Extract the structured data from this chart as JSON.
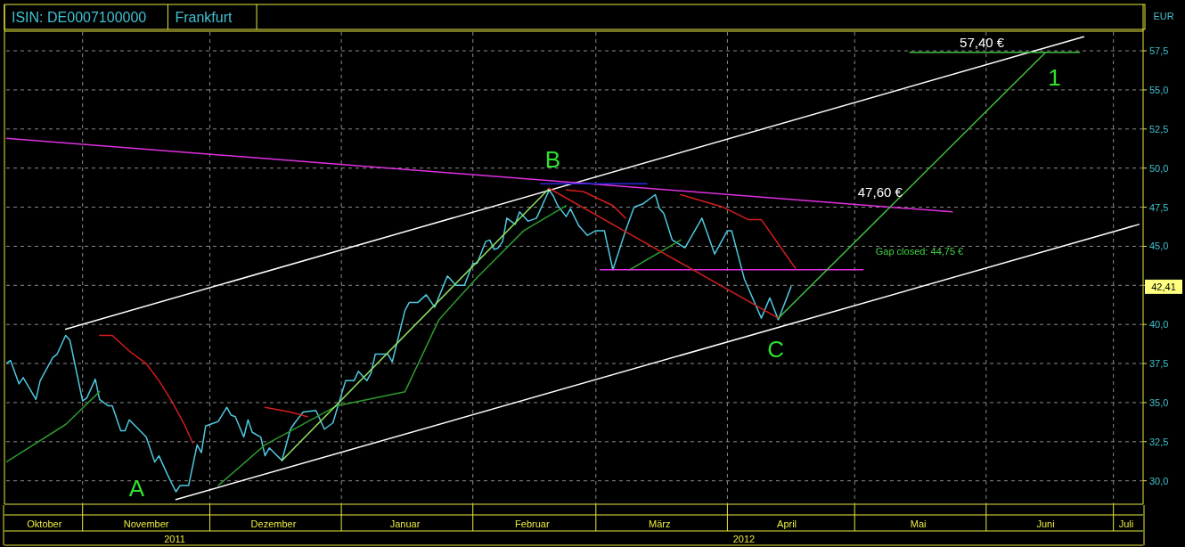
{
  "chart_data": {
    "type": "line",
    "title": "ISIN: DE0007100000",
    "subtitle": "Frankfurt",
    "ylabel": "EUR",
    "xlim": [
      "2011-10-14",
      "2012-07-08"
    ],
    "ylim": [
      28.5,
      58.7
    ],
    "yticks": [
      {
        "value": 30,
        "label": "30,0"
      },
      {
        "value": 32.5,
        "label": "32,5"
      },
      {
        "value": 35,
        "label": "35,0"
      },
      {
        "value": 37.5,
        "label": "37,5"
      },
      {
        "value": 40,
        "label": "40,0"
      },
      {
        "value": 42.5,
        "label": null
      },
      {
        "value": 45,
        "label": "45,0"
      },
      {
        "value": 47.5,
        "label": "47,5"
      },
      {
        "value": 50,
        "label": "50,0"
      },
      {
        "value": 52.5,
        "label": "52,5"
      },
      {
        "value": 55,
        "label": "55,0"
      },
      {
        "value": 57.5,
        "label": "57,5"
      }
    ],
    "xticks": [
      {
        "value": "2011-10-23",
        "label": "Oktober"
      },
      {
        "value": "2011-11-01",
        "label": null
      },
      {
        "value": "2011-11-16",
        "label": "November"
      },
      {
        "value": "2011-12-01",
        "label": null
      },
      {
        "value": "2011-12-16",
        "label": "Dezember"
      },
      {
        "value": "2012-01-01",
        "label": null
      },
      {
        "value": "2012-01-16",
        "label": "Januar"
      },
      {
        "value": "2012-02-01",
        "label": null
      },
      {
        "value": "2012-02-15",
        "label": "Februar"
      },
      {
        "value": "2012-03-01",
        "label": null
      },
      {
        "value": "2012-03-16",
        "label": "März"
      },
      {
        "value": "2012-04-01",
        "label": null
      },
      {
        "value": "2012-04-15",
        "label": "April"
      },
      {
        "value": "2012-05-01",
        "label": null
      },
      {
        "value": "2012-05-16",
        "label": "Mai"
      },
      {
        "value": "2012-06-01",
        "label": null
      },
      {
        "value": "2012-06-15",
        "label": "Juni"
      },
      {
        "value": "2012-07-01",
        "label": null
      },
      {
        "value": "2012-07-04",
        "label": "Juli"
      }
    ],
    "grid": true,
    "marker": "none",
    "series": [
      {
        "color": "#4fc8e0",
        "x": [
          "2011-10-14",
          "2011-10-15",
          "2011-10-17",
          "2011-10-18",
          "2011-10-21",
          "2011-10-22",
          "2011-10-25",
          "2011-10-26",
          "2011-10-28",
          "2011-10-29",
          "2011-11-01",
          "2011-11-02",
          "2011-11-04",
          "2011-11-05",
          "2011-11-07",
          "2011-11-08",
          "2011-11-10",
          "2011-11-11",
          "2011-11-12",
          "2011-11-16",
          "2011-11-18",
          "2011-11-19",
          "2011-11-21",
          "2011-11-23",
          "2011-11-24",
          "2011-11-26",
          "2011-11-28",
          "2011-11-29",
          "2011-11-30",
          "2011-12-01",
          "2011-12-03",
          "2011-12-05",
          "2011-12-06",
          "2011-12-07",
          "2011-12-09",
          "2011-12-10",
          "2011-12-11",
          "2011-12-13",
          "2011-12-14",
          "2011-12-15",
          "2011-12-18",
          "2011-12-20",
          "2011-12-21",
          "2011-12-23",
          "2011-12-26",
          "2011-12-28",
          "2011-12-30",
          "2012-01-02",
          "2012-01-04",
          "2012-01-05",
          "2012-01-07",
          "2012-01-08",
          "2012-01-09",
          "2012-01-12",
          "2012-01-13",
          "2012-01-16",
          "2012-01-17",
          "2012-01-19",
          "2012-01-21",
          "2012-01-23",
          "2012-01-26",
          "2012-01-28",
          "2012-01-30",
          "2012-02-01",
          "2012-02-02",
          "2012-02-04",
          "2012-02-05",
          "2012-02-06",
          "2012-02-07",
          "2012-02-08",
          "2012-02-09",
          "2012-02-11",
          "2012-02-12",
          "2012-02-14",
          "2012-02-16",
          "2012-02-19",
          "2012-02-20",
          "2012-02-21",
          "2012-02-23",
          "2012-02-24",
          "2012-02-26",
          "2012-02-28",
          "2012-03-01",
          "2012-03-03",
          "2012-03-05",
          "2012-03-08",
          "2012-03-10",
          "2012-03-12",
          "2012-03-15",
          "2012-03-16",
          "2012-03-17",
          "2012-03-19",
          "2012-03-22",
          "2012-03-26",
          "2012-03-29",
          "2012-04-01",
          "2012-04-02",
          "2012-04-05",
          "2012-04-09",
          "2012-04-11",
          "2012-04-13",
          "2012-04-16"
        ],
        "values": [
          37.5,
          37.7,
          36.2,
          36.6,
          35.2,
          36.4,
          37.9,
          38.1,
          39.3,
          39.0,
          35.1,
          35.3,
          36.5,
          35.2,
          34.8,
          34.8,
          33.2,
          33.2,
          33.9,
          32.8,
          31.2,
          31.6,
          30.4,
          29.3,
          29.7,
          29.7,
          32.3,
          31.8,
          33.5,
          33.6,
          33.8,
          34.7,
          34.2,
          34.1,
          32.8,
          33.9,
          33.1,
          32.8,
          31.6,
          32.1,
          31.3,
          33.3,
          33.7,
          34.4,
          34.5,
          33.3,
          33.7,
          36.4,
          36.4,
          37.0,
          36.4,
          36.9,
          38.1,
          38.1,
          37.6,
          40.9,
          41.4,
          41.4,
          41.9,
          41.1,
          43.1,
          42.5,
          42.5,
          43.9,
          43.9,
          45.3,
          45.4,
          44.8,
          44.9,
          45.3,
          46.8,
          46.4,
          47.2,
          46.6,
          46.8,
          48.6,
          48.2,
          47.6,
          46.9,
          47.4,
          46.3,
          45.7,
          46.0,
          46.0,
          43.5,
          46.0,
          47.5,
          47.7,
          48.3,
          47.4,
          47.1,
          45.4,
          44.9,
          46.8,
          44.5,
          46.0,
          46.0,
          42.9,
          40.4,
          41.7,
          40.3,
          42.41
        ]
      },
      {
        "color": "#2e9a2e",
        "x": [
          "2011-10-14",
          "2011-10-28",
          "2011-11-05"
        ],
        "values": [
          31.2,
          33.6,
          35.7
        ]
      },
      {
        "color": "#2e9a2e",
        "x": [
          "2011-12-03",
          "2011-12-14",
          "2011-12-31",
          "2012-01-16",
          "2012-01-24",
          "2012-02-02",
          "2012-02-13",
          "2012-02-23"
        ],
        "values": [
          29.7,
          32.3,
          34.8,
          35.7,
          40.3,
          43.0,
          46.0,
          47.6
        ]
      },
      {
        "color": "#2e9a2e",
        "x": [
          "2012-03-09",
          "2012-03-21"
        ],
        "values": [
          43.5,
          45.4
        ]
      },
      {
        "color": "#d21e1e",
        "x": [
          "2011-11-05",
          "2011-11-08",
          "2011-11-12",
          "2011-11-16",
          "2011-11-19",
          "2011-11-22",
          "2011-11-25",
          "2011-11-27"
        ],
        "values": [
          39.3,
          39.3,
          38.3,
          37.5,
          36.4,
          35.1,
          33.6,
          32.4
        ]
      },
      {
        "color": "#d21e1e",
        "x": [
          "2011-12-14",
          "2011-12-20",
          "2011-12-24"
        ],
        "values": [
          34.7,
          34.4,
          34.1
        ]
      },
      {
        "color": "#d21e1e",
        "x": [
          "2012-02-23",
          "2012-02-27",
          "2012-03-05",
          "2012-03-08"
        ],
        "values": [
          48.6,
          48.5,
          47.6,
          46.8
        ]
      },
      {
        "color": "#d21e1e",
        "x": [
          "2012-03-21",
          "2012-03-31",
          "2012-04-06",
          "2012-04-09",
          "2012-04-17"
        ],
        "values": [
          48.3,
          47.5,
          46.7,
          46.7,
          43.6
        ]
      },
      {
        "color": "#ffffff",
        "x": [
          "2011-10-28",
          "2012-06-24"
        ],
        "values": [
          39.7,
          58.4
        ]
      },
      {
        "color": "#ffffff",
        "x": [
          "2011-11-23",
          "2012-07-07"
        ],
        "values": [
          28.8,
          46.4
        ]
      },
      {
        "color": "#e030e0",
        "x": [
          "2011-10-14",
          "2012-05-24"
        ],
        "values": [
          51.9,
          47.2
        ]
      },
      {
        "color": "#e030e0",
        "x": [
          "2012-03-02",
          "2012-05-03"
        ],
        "values": [
          43.5,
          43.5
        ]
      },
      {
        "color": "#2828e0",
        "x": [
          "2012-02-17",
          "2012-03-13"
        ],
        "values": [
          49.0,
          49.0
        ]
      },
      {
        "color": "#8ee060",
        "x": [
          "2011-12-18",
          "2012-02-19"
        ],
        "values": [
          31.3,
          48.7
        ]
      },
      {
        "color": "#d21e1e",
        "x": [
          "2012-02-19",
          "2012-04-13"
        ],
        "values": [
          48.7,
          40.4
        ]
      },
      {
        "color": "#40c040",
        "x": [
          "2012-04-13",
          "2012-06-15"
        ],
        "values": [
          40.4,
          57.4
        ]
      },
      {
        "color": "#40c040",
        "x": [
          "2012-05-14",
          "2012-06-23"
        ],
        "values": [
          57.4,
          57.4
        ]
      }
    ],
    "annotations": [
      {
        "text": "A",
        "x": "2011-11-23",
        "y": 29.3
      },
      {
        "text": "B",
        "x": "2012-02-19",
        "y": 48.6
      },
      {
        "text": "C",
        "x": "2012-04-13",
        "y": 40.3
      },
      {
        "text": "1",
        "x": "2012-06-15",
        "y": 57.4
      },
      {
        "text": "57,40 €",
        "x": "2012-05-31",
        "y": 57.4
      },
      {
        "text": "47,60 €",
        "x": "2012-05-07",
        "y": 47.6
      },
      {
        "text": "42,41",
        "y": 42.41
      },
      "Gap closed: 44,75 €",
      "2011",
      "2012"
    ]
  }
}
